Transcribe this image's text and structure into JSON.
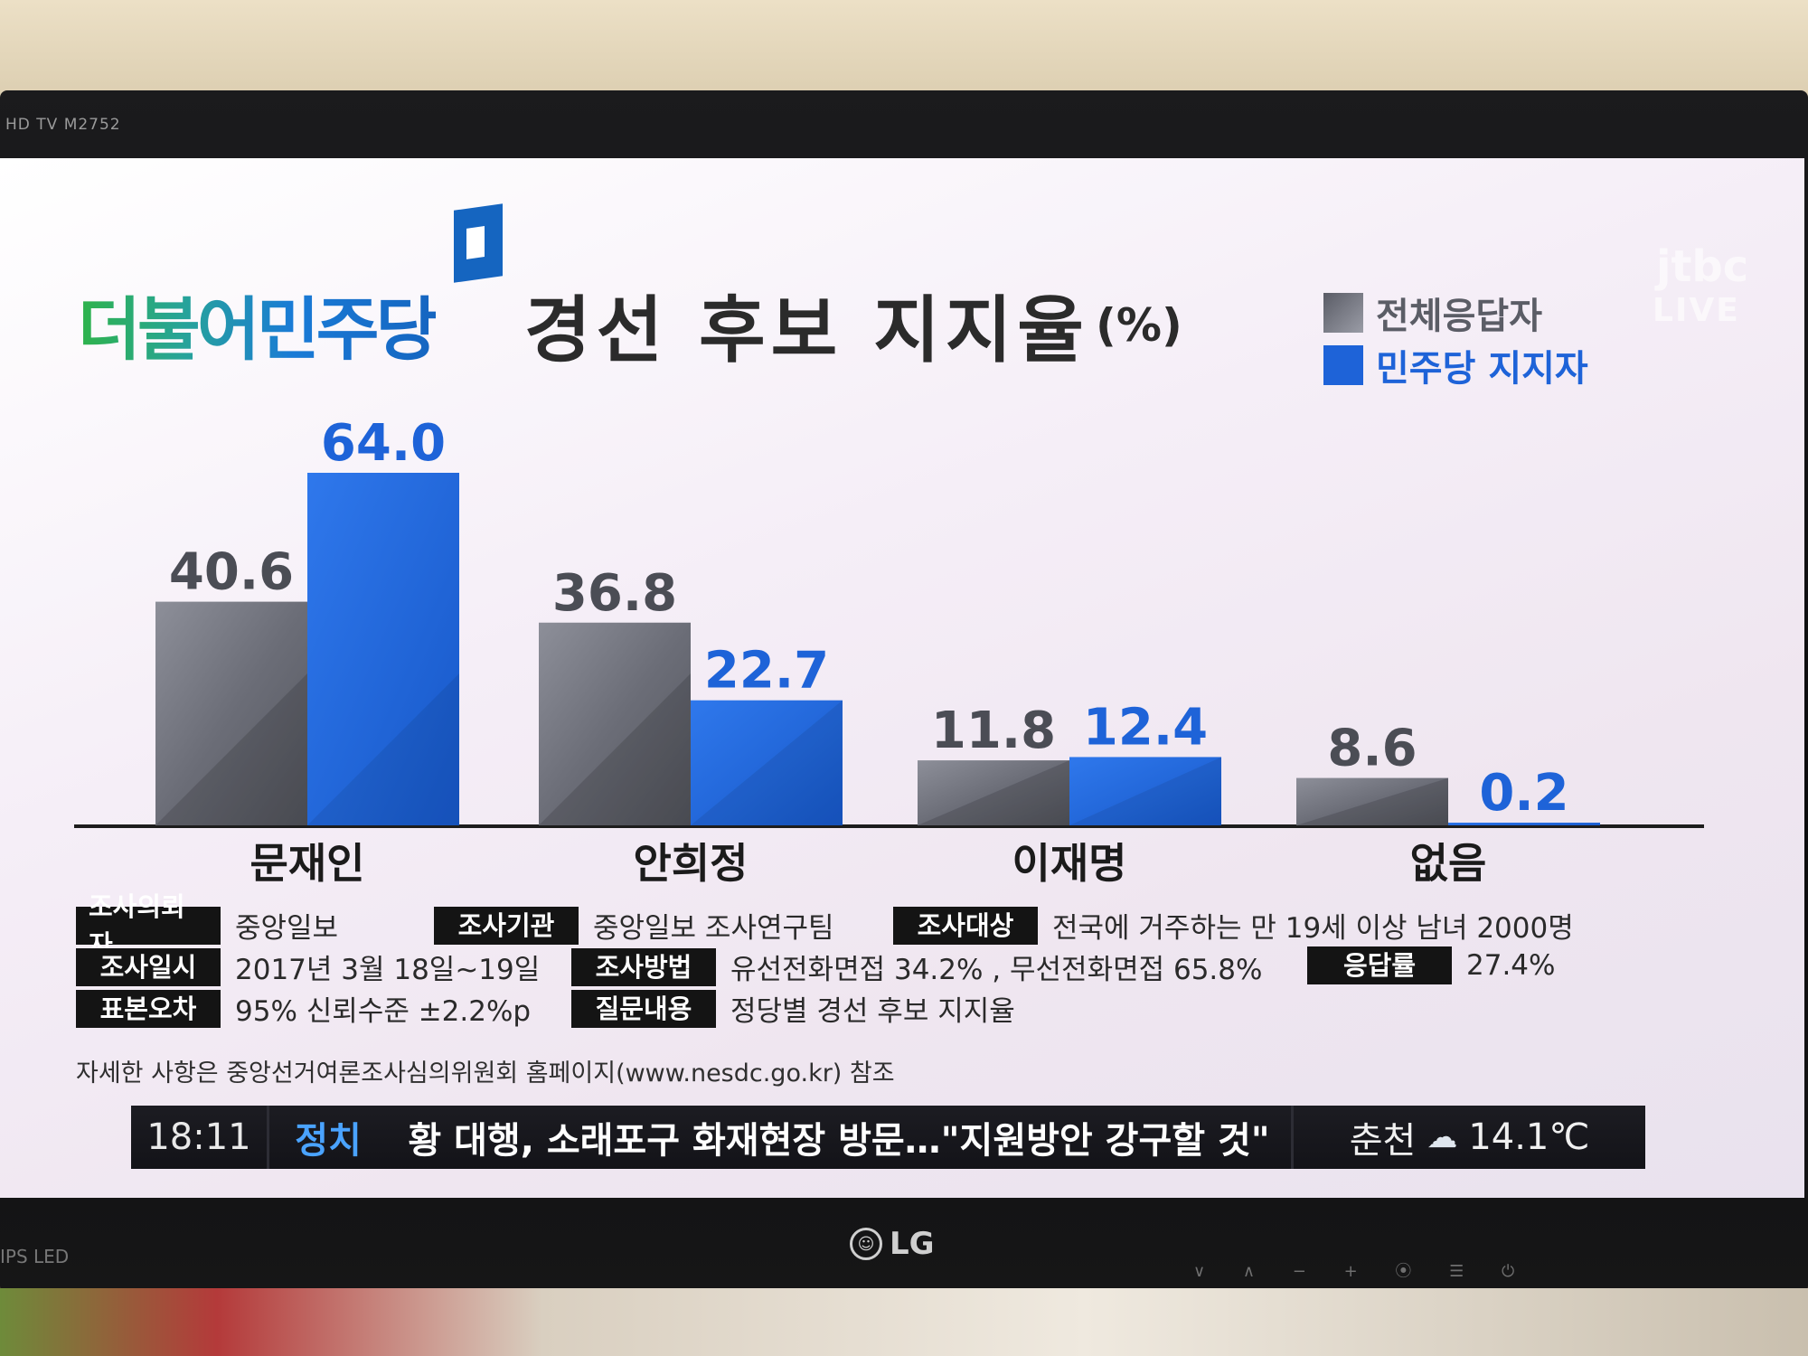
{
  "tv": {
    "brand_top_left": "HD TV M2752",
    "brand_bottom_left": "IPS LED",
    "logo": "LG",
    "controls": "∨ ∧ − + ⦿ ☰ ⏻"
  },
  "broadcast": {
    "party_name": "더불어민주당",
    "title": "경선 후보 지지율",
    "unit": "(%)",
    "channel_logo": "jtbc",
    "live_label": "LIVE"
  },
  "legend": [
    {
      "label": "전체응답자",
      "color": "#7a7c86"
    },
    {
      "label": "민주당 지지자",
      "color": "#1e63d8"
    }
  ],
  "chart_data": {
    "type": "bar",
    "title": "경선 후보 지지율",
    "unit": "(%)",
    "categories": [
      "문재인",
      "안희정",
      "이재명",
      "없음"
    ],
    "series": [
      {
        "name": "전체응답자",
        "values": [
          40.6,
          36.8,
          11.8,
          8.6
        ],
        "labels": [
          "40.6",
          "36.8",
          "11.8",
          "8.6"
        ],
        "color": "#6f717b"
      },
      {
        "name": "민주당 지지자",
        "values": [
          64.0,
          22.7,
          12.4,
          0.2
        ],
        "labels": [
          "64.0",
          "22.7",
          "12.4",
          "0.2"
        ],
        "color": "#1e63d8"
      }
    ],
    "ylim": [
      0,
      64
    ],
    "legend_position": "top-right",
    "grid": false
  },
  "survey_info": {
    "client_label": "조사의뢰자",
    "client": "중앙일보",
    "agency_label": "조사기관",
    "agency": "중앙일보 조사연구팀",
    "target_label": "조사대상",
    "target": "전국에 거주하는 만 19세 이상 남녀 2000명",
    "date_label": "조사일시",
    "date": "2017년 3월 18일~19일",
    "method_label": "조사방법",
    "method": "유선전화면접 34.2% , 무선전화면접 65.8%",
    "response_label": "응답률",
    "response": "27.4%",
    "error_label": "표본오차",
    "error": "95% 신뢰수준 ±2.2%p",
    "question_label": "질문내용",
    "question": "정당별 경선 후보 지지율",
    "note": "자세한 사항은 중앙선거여론조사심의위원회 홈페이지(www.nesdc.go.kr) 참조"
  },
  "ticker": {
    "time": "18:11",
    "category": "정치",
    "headline": "황 대행, 소래포구 화재현장 방문…\"지원방안 강구할 것\"",
    "city": "춘천",
    "weather_icon": "cloud-icon",
    "temperature": "14.1℃"
  }
}
